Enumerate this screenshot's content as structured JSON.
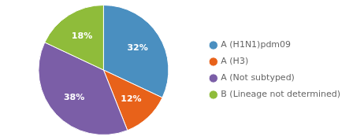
{
  "chart_data": {
    "type": "pie",
    "categories": [
      "A (H1N1)pdm09",
      "A (H3)",
      "A (Not subtyped)",
      "B (Lineage not determined)"
    ],
    "values": [
      32,
      12,
      38,
      18
    ],
    "value_labels": [
      "32%",
      "12%",
      "38%",
      "18%"
    ],
    "colors": [
      "#4a8fc0",
      "#e8621a",
      "#7b5ea7",
      "#8fbc3a"
    ],
    "data_labels": true,
    "legend": "right"
  }
}
